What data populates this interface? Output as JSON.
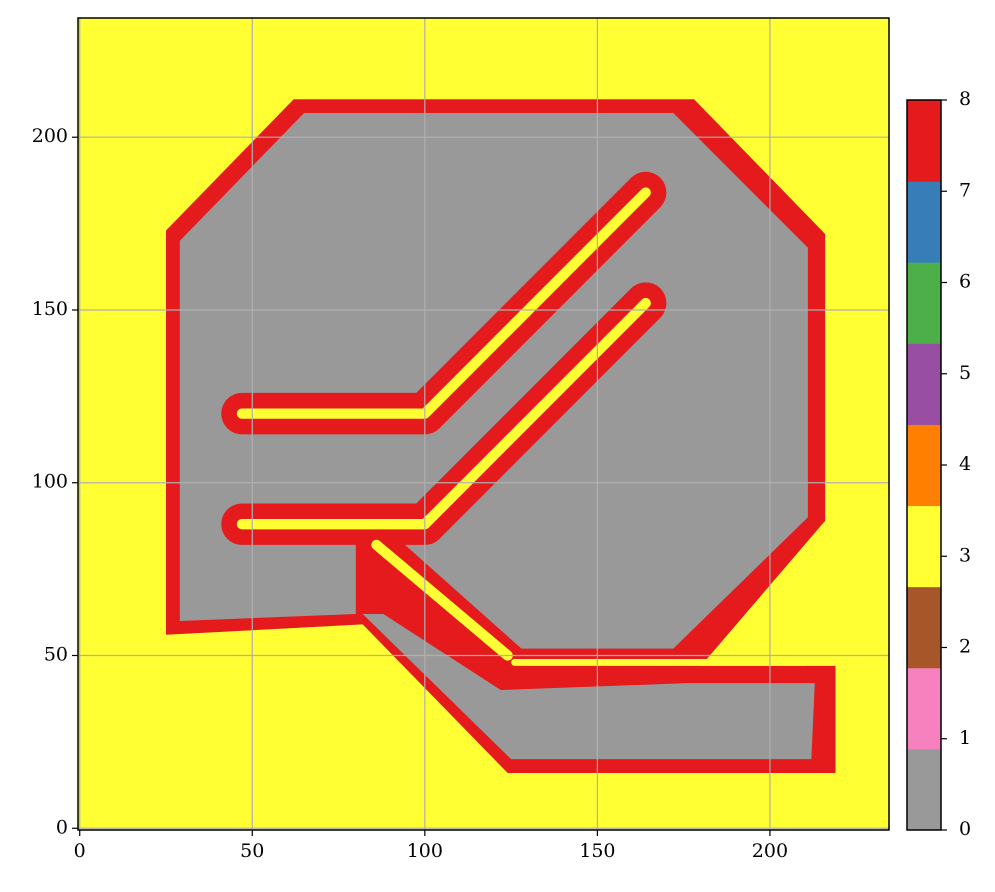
{
  "chart_data": {
    "type": "image",
    "xlim": [
      -0.5,
      234.5
    ],
    "ylim": [
      -0.5,
      234.5
    ],
    "xticks": [
      0,
      50,
      100,
      150,
      200
    ],
    "yticks": [
      0,
      50,
      100,
      150,
      200
    ],
    "grid": true,
    "background": 3,
    "regions": [
      {
        "value": 8,
        "polygon": [
          [
            25,
            56
          ],
          [
            25,
            173
          ],
          [
            62,
            211
          ],
          [
            178,
            211
          ],
          [
            216,
            172
          ],
          [
            216,
            89
          ],
          [
            180,
            47
          ],
          [
            219,
            47
          ],
          [
            219,
            16
          ],
          [
            124,
            16
          ],
          [
            82,
            59
          ]
        ]
      },
      {
        "value": 0,
        "polygon": [
          [
            29,
            60
          ],
          [
            29,
            170
          ],
          [
            65,
            207
          ],
          [
            172,
            207
          ],
          [
            211,
            168
          ],
          [
            211,
            90
          ],
          [
            172,
            52
          ],
          [
            128,
            52
          ],
          [
            92,
            84
          ],
          [
            80,
            84
          ],
          [
            80,
            62
          ]
        ]
      },
      {
        "value": 0,
        "polygon": [
          [
            82,
            62
          ],
          [
            125,
            20
          ],
          [
            212,
            20
          ],
          [
            213,
            42
          ],
          [
            176,
            42
          ],
          [
            122,
            40
          ],
          [
            88,
            62
          ]
        ]
      },
      {
        "value": 8,
        "path": [
          [
            47,
            120
          ],
          [
            100,
            120
          ],
          [
            164,
            184
          ]
        ],
        "width": 12
      },
      {
        "value": 8,
        "path": [
          [
            47,
            88
          ],
          [
            100,
            88
          ],
          [
            164,
            152
          ]
        ],
        "width": 12
      },
      {
        "value": 3,
        "path": [
          [
            47,
            120
          ],
          [
            100,
            120
          ],
          [
            164,
            184
          ]
        ],
        "width": 3
      },
      {
        "value": 3,
        "path": [
          [
            47,
            88
          ],
          [
            100,
            88
          ],
          [
            164,
            152
          ]
        ],
        "width": 3
      },
      {
        "value": 3,
        "path": [
          [
            86,
            82
          ],
          [
            124,
            50
          ]
        ],
        "width": 3
      },
      {
        "value": 3,
        "path": [
          [
            126,
            48
          ],
          [
            210,
            48
          ]
        ],
        "width": 2
      }
    ],
    "colorbar": {
      "colors": [
        "#999999",
        "#f781bf",
        "#a65628",
        "#ffff33",
        "#ff7f00",
        "#984ea3",
        "#4daf4a",
        "#377eb8",
        "#e41a1c"
      ],
      "lim": [
        0,
        8
      ],
      "ticks": [
        0,
        1,
        2,
        3,
        4,
        5,
        6,
        7,
        8
      ]
    }
  }
}
